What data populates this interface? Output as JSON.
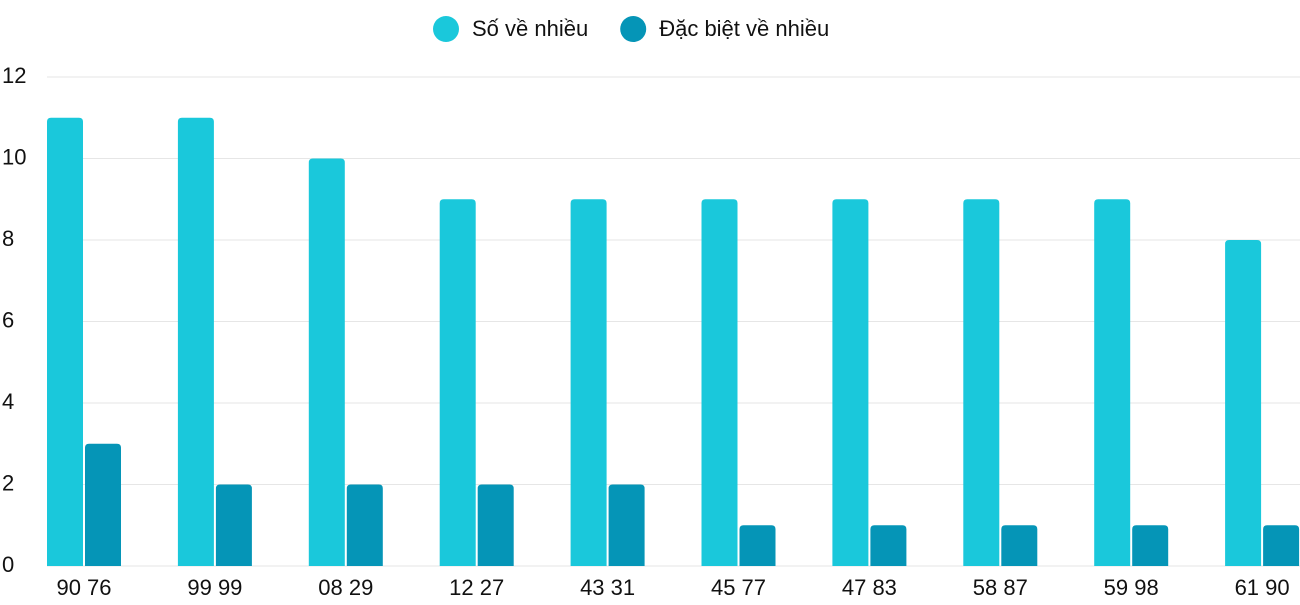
{
  "chart_data": {
    "type": "bar",
    "categories": [
      "90 76",
      "99 99",
      "08 29",
      "12 27",
      "43 31",
      "45 77",
      "47 83",
      "58 87",
      "59 98",
      "61 90"
    ],
    "series": [
      {
        "name": "Số về nhiều",
        "color": "#1ac8db",
        "values": [
          11,
          11,
          10,
          9,
          9,
          9,
          9,
          9,
          9,
          8
        ]
      },
      {
        "name": "Đặc biệt về nhiều",
        "color": "#0595b7",
        "values": [
          3,
          2,
          2,
          2,
          2,
          1,
          1,
          1,
          1,
          1
        ]
      }
    ],
    "ylim": [
      0,
      12
    ],
    "yticks": [
      0,
      2,
      4,
      6,
      8,
      10,
      12
    ],
    "grid": true,
    "legend": "top"
  }
}
